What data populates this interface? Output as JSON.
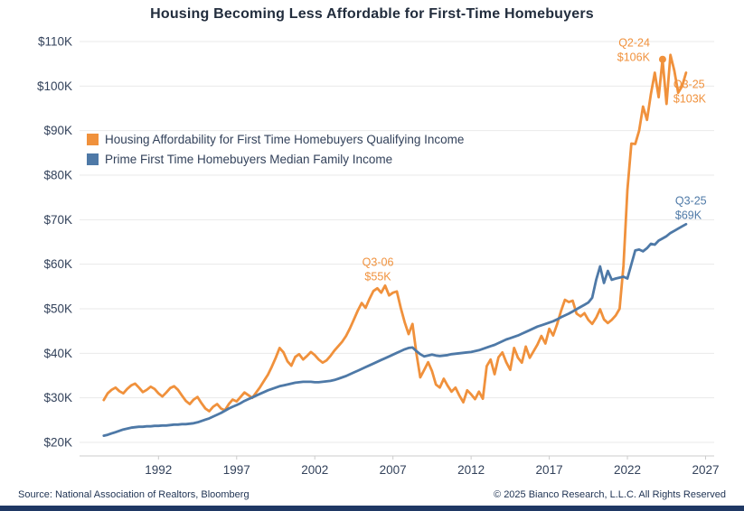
{
  "page": {
    "title": "Housing Becoming Less Affordable for First-Time Homebuyers",
    "source": "Source: National Association of Realtors, Bloomberg",
    "copyright": "© 2025 Bianco Research, L.L.C. All Rights Reserved"
  },
  "colors": {
    "orange": "#f0913c",
    "blue": "#4e79a7",
    "axis_text": "#33425b",
    "gridline": "#e9e9e9",
    "axis_line": "#cccccc",
    "footer_bar": "#1f3864"
  },
  "legend": {
    "position": "upper-left",
    "items": [
      {
        "label": "Housing Affordability for First Time Homebuyers Qualifying Income",
        "color": "#f0913c"
      },
      {
        "label": "Prime First Time Homebuyers Median Family Income",
        "color": "#4e79a7"
      }
    ]
  },
  "chart_data": {
    "type": "line",
    "title": "Housing Becoming Less Affordable for First-Time Homebuyers",
    "xlabel": "",
    "ylabel": "",
    "unit": "USD thousands per year",
    "grid": "horizontal",
    "x_axis": {
      "range": [
        1986.95,
        2027.55
      ],
      "ticks": [
        1992,
        1997,
        2002,
        2007,
        2012,
        2017,
        2022,
        2027
      ],
      "tick_labels": [
        "1992",
        "1997",
        "2002",
        "2007",
        "2012",
        "2017",
        "2022",
        "2027"
      ]
    },
    "y_axis": {
      "range": [
        20,
        110
      ],
      "tick_values": [
        110,
        100,
        90,
        80,
        70,
        60,
        50,
        40,
        30,
        20
      ],
      "tick_labels": [
        "$110K",
        "$100K",
        "$90K",
        "$80K",
        "$70K",
        "$60K",
        "$50K",
        "$40K",
        "$30K",
        "$20K"
      ]
    },
    "series": [
      {
        "name": "Housing Affordability for First Time Homebuyers Qualifying Income",
        "color": "#f0913c",
        "x_start": 1988.5,
        "x_step": 0.25,
        "values": [
          29.5,
          31.0,
          31.8,
          32.3,
          31.5,
          31.0,
          32.0,
          32.8,
          33.2,
          32.3,
          31.3,
          31.8,
          32.5,
          32.0,
          31.0,
          30.3,
          31.2,
          32.2,
          32.6,
          31.8,
          30.5,
          29.3,
          28.6,
          29.6,
          30.2,
          28.8,
          27.6,
          27.0,
          28.0,
          28.6,
          27.6,
          27.2,
          28.6,
          29.6,
          29.2,
          30.2,
          31.2,
          30.6,
          30.0,
          31.2,
          32.4,
          33.8,
          35.2,
          37.0,
          39.0,
          41.2,
          40.2,
          38.2,
          37.2,
          39.2,
          39.8,
          38.6,
          39.4,
          40.3,
          39.6,
          38.6,
          37.9,
          38.4,
          39.4,
          40.6,
          41.6,
          42.6,
          43.9,
          45.6,
          47.6,
          49.6,
          51.3,
          50.2,
          52.2,
          54.0,
          54.6,
          53.6,
          55.2,
          53.0,
          53.6,
          53.9,
          50.2,
          47.0,
          44.3,
          46.6,
          40.0,
          34.6,
          36.3,
          38.0,
          36.0,
          33.0,
          32.3,
          34.3,
          32.7,
          31.4,
          32.3,
          30.5,
          29.0,
          31.7,
          30.8,
          29.7,
          31.4,
          29.8,
          37.1,
          38.6,
          35.3,
          39.1,
          40.2,
          38.0,
          36.3,
          41.2,
          39.0,
          37.9,
          41.5,
          39.0,
          40.5,
          42.0,
          43.9,
          42.2,
          45.5,
          44.0,
          46.5,
          49.5,
          52.0,
          51.5,
          51.8,
          48.9,
          48.3,
          49.0,
          47.5,
          46.6,
          48.0,
          49.9,
          47.6,
          46.8,
          47.5,
          48.5,
          50.0,
          59.7,
          76.6,
          87.1,
          87.0,
          90.0,
          95.4,
          92.4,
          98.2,
          103.0,
          97.5,
          106.0,
          96.0,
          107.0,
          103.5,
          98.5,
          100.0,
          103.0
        ]
      },
      {
        "name": "Prime First Time Homebuyers Median Family Income",
        "color": "#4e79a7",
        "x_start": 1988.5,
        "x_step": 0.25,
        "values": [
          21.5,
          21.7,
          22.0,
          22.3,
          22.6,
          22.9,
          23.1,
          23.3,
          23.4,
          23.5,
          23.5,
          23.6,
          23.6,
          23.7,
          23.7,
          23.8,
          23.8,
          23.9,
          24.0,
          24.0,
          24.1,
          24.1,
          24.2,
          24.3,
          24.5,
          24.8,
          25.1,
          25.4,
          25.8,
          26.2,
          26.6,
          27.1,
          27.6,
          28.0,
          28.4,
          28.8,
          29.3,
          29.7,
          30.1,
          30.5,
          30.9,
          31.3,
          31.7,
          32.0,
          32.3,
          32.6,
          32.8,
          33.0,
          33.2,
          33.4,
          33.5,
          33.6,
          33.6,
          33.6,
          33.5,
          33.5,
          33.6,
          33.7,
          33.8,
          34.0,
          34.3,
          34.6,
          34.9,
          35.3,
          35.7,
          36.1,
          36.5,
          36.9,
          37.3,
          37.7,
          38.1,
          38.5,
          38.9,
          39.3,
          39.7,
          40.1,
          40.5,
          40.9,
          41.2,
          41.3,
          40.5,
          39.8,
          39.3,
          39.5,
          39.7,
          39.5,
          39.4,
          39.5,
          39.6,
          39.8,
          39.9,
          40.0,
          40.1,
          40.2,
          40.3,
          40.5,
          40.7,
          41.0,
          41.3,
          41.6,
          41.9,
          42.3,
          42.7,
          43.1,
          43.4,
          43.7,
          44.0,
          44.4,
          44.8,
          45.2,
          45.6,
          46.0,
          46.3,
          46.6,
          46.9,
          47.2,
          47.6,
          48.1,
          48.5,
          48.9,
          49.4,
          49.9,
          50.4,
          50.9,
          51.4,
          52.5,
          56.5,
          59.5,
          55.8,
          58.5,
          56.5,
          56.8,
          57.0,
          57.2,
          56.8,
          60.0,
          63.1,
          63.3,
          62.9,
          63.6,
          64.6,
          64.4,
          65.3,
          65.8,
          66.3,
          67.0,
          67.5,
          68.0,
          68.5,
          69.0
        ]
      }
    ],
    "annotations": [
      {
        "series": 0,
        "lines": [
          "Q3-06",
          "$55K"
        ],
        "x": 2006.5,
        "y": 55.2,
        "anchor": "middle",
        "dx": -8,
        "dy": [
          -22,
          -6
        ],
        "marker": false
      },
      {
        "series": 0,
        "lines": [
          "Q2-24",
          "$106K"
        ],
        "x": 2024.25,
        "y": 106,
        "anchor": "end",
        "dx": -14,
        "dy": [
          -14,
          2
        ],
        "marker": true
      },
      {
        "series": 0,
        "lines": [
          "Q3-25",
          "$103K"
        ],
        "x": 2025.75,
        "y": 103,
        "anchor": "start",
        "dx": -14,
        "dy": [
          17,
          33
        ],
        "marker": false
      },
      {
        "series": 1,
        "lines": [
          "Q3-25",
          "$69K"
        ],
        "x": 2025.75,
        "y": 69,
        "anchor": "start",
        "dx": -12,
        "dy": [
          -22,
          -6
        ],
        "marker": false
      }
    ]
  }
}
